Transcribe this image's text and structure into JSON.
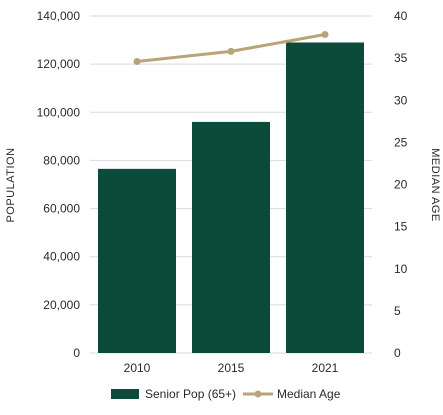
{
  "colors": {
    "bar": "#0c4a3a",
    "line": "#b9a477",
    "grid": "#d9d9d9",
    "text": "#2a2a2a"
  },
  "chart_data": {
    "type": "bar",
    "categories": [
      "2010",
      "2015",
      "2021"
    ],
    "series": [
      {
        "name": "Senior Pop (65+)",
        "type": "bar",
        "axis": "left",
        "values": [
          76500,
          96000,
          129000
        ]
      },
      {
        "name": "Median Age",
        "type": "line",
        "axis": "right",
        "values": [
          34.6,
          35.8,
          37.8
        ]
      }
    ],
    "ylabel": "POPULATION",
    "y2label": "MEDIAN AGE",
    "ylim": [
      0,
      140000
    ],
    "y2lim": [
      0,
      40
    ],
    "yticks": [
      "0",
      "20,000",
      "40,000",
      "60,000",
      "80,000",
      "100,000",
      "120,000",
      "140,000"
    ],
    "y2ticks": [
      "0",
      "5",
      "10",
      "15",
      "20",
      "25",
      "30",
      "35",
      "40"
    ],
    "grid": true,
    "legend_position": "bottom"
  }
}
